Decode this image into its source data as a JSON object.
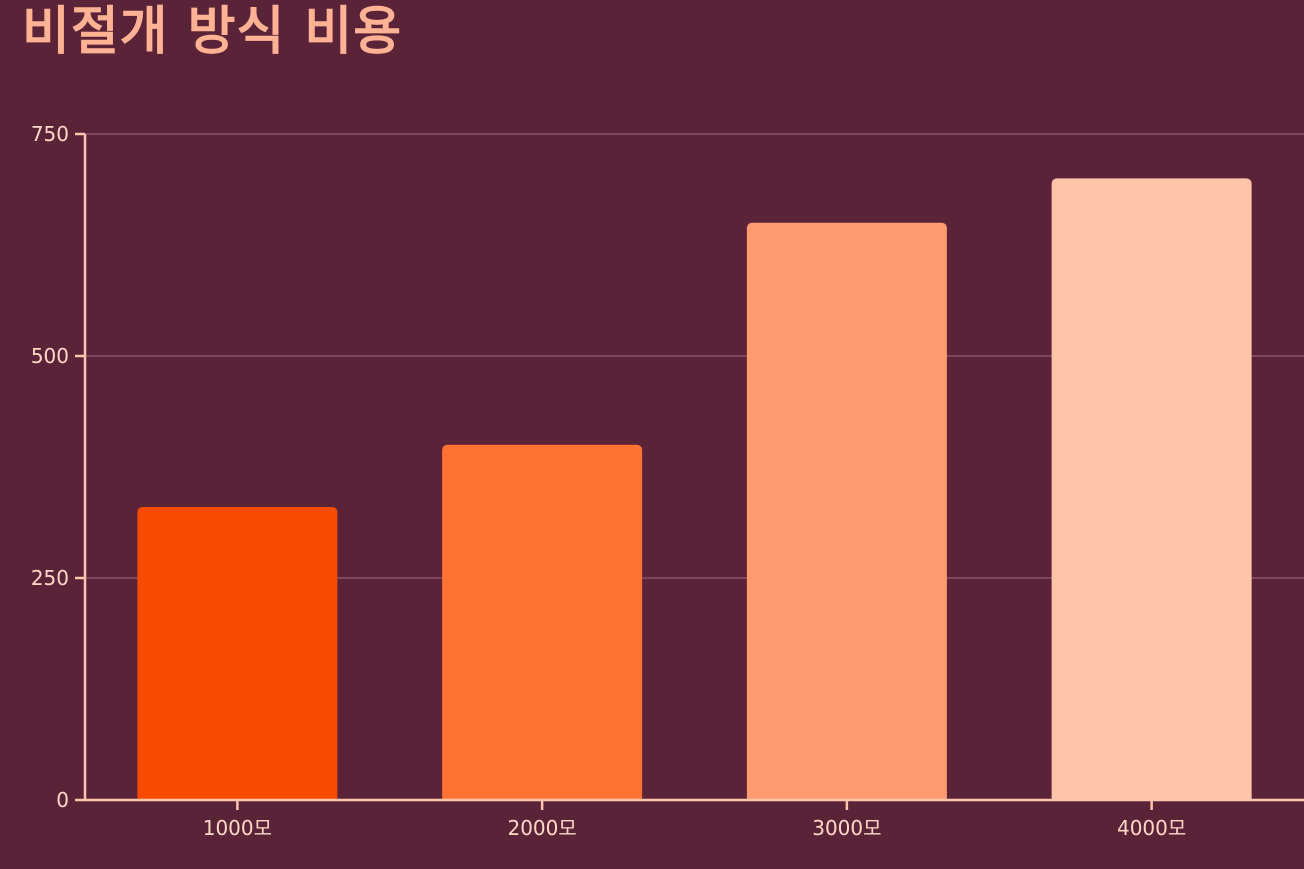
{
  "chart_data": {
    "type": "bar",
    "title": "비절개 방식 비용",
    "xlabel": "",
    "ylabel": "",
    "categories": [
      "1000모",
      "2000모",
      "3000모",
      "4000모"
    ],
    "values": [
      330,
      400,
      650,
      700
    ],
    "ylim": [
      0,
      750
    ],
    "yticks": [
      0,
      250,
      500,
      750
    ],
    "grid": true,
    "legend": "none",
    "colors": [
      "#f74c00",
      "#ff7231",
      "#ff9b6e",
      "#ffc4a9"
    ]
  }
}
